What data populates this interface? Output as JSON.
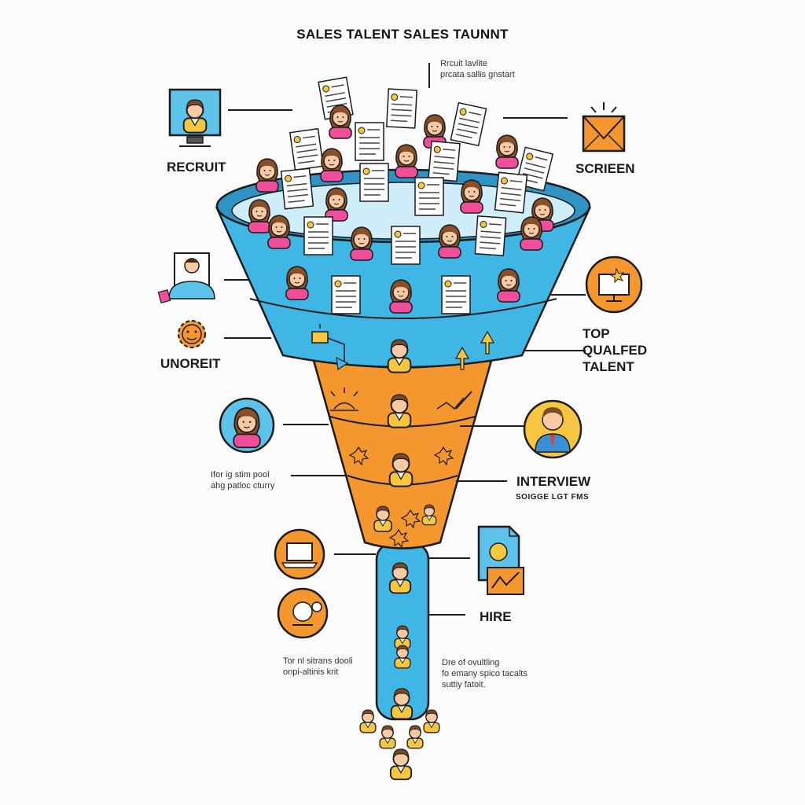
{
  "title": "SALES TALENT SALES TAUNNT",
  "labels": {
    "recruit": "RECRUIT",
    "screen": "SCRIEEN",
    "unoreit": "UNOREIT",
    "top_qualified": "TOP\nQUALFED\nTALENT",
    "interview": "INTERVIEW",
    "interview_sub": "SOIGGE LGT FMS",
    "hire": "HIRE"
  },
  "notes": {
    "top": "Rrcuit lavlite\nprcata sallis gnstart",
    "left_middle": "Ifor ig stim pool\nahg patloc cturry",
    "left_bottom": "Tor nl sitrans dooli\nonpi-altinis krit",
    "right_bottom": "Dre of ovultling\nfo emany spico tacalts\nsuttiy fatoit."
  },
  "colors": {
    "funnel_blue": "#40b6e4",
    "funnel_orange": "#f3972e",
    "outline": "#1b1b1b",
    "icon_orange": "#f28c28",
    "icon_blue": "#5ec3ea",
    "icon_yellow": "#f7c640",
    "person_pink": "#ef4f9a",
    "person_yellow": "#f7c640",
    "person_blue": "#3c8fd6"
  },
  "icons": [
    "computer-person-icon",
    "envelope-icon",
    "profile-card-icon",
    "gear-face-icon",
    "monitor-icon",
    "woman-avatar-icon",
    "man-avatar-icon",
    "laptop-icon",
    "handshake-icon",
    "document-chart-icon"
  ]
}
